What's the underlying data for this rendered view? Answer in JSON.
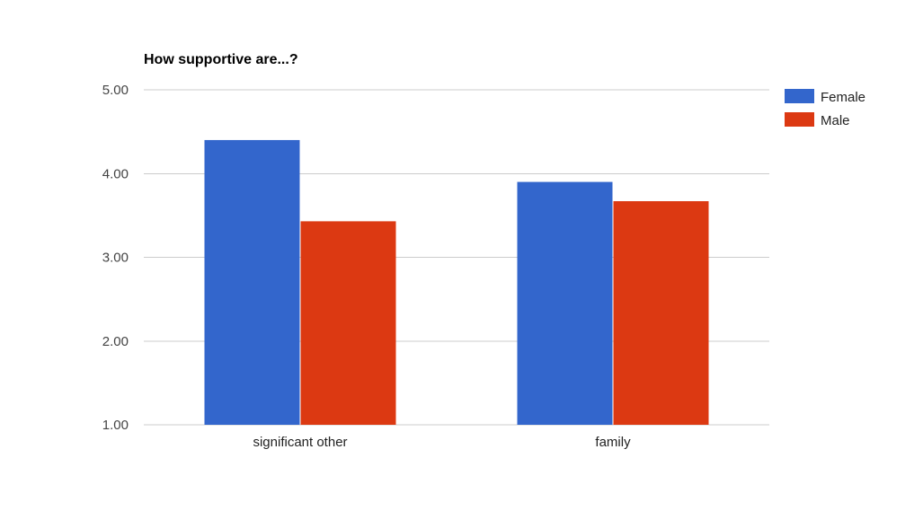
{
  "chart_data": {
    "type": "bar",
    "title": "How supportive are...?",
    "xlabel": "",
    "ylabel": "",
    "categories": [
      "significant other",
      "family"
    ],
    "series": [
      {
        "name": "Female",
        "color": "#3366cc",
        "values": [
          4.4,
          3.9
        ]
      },
      {
        "name": "Male",
        "color": "#dc3912",
        "values": [
          3.43,
          3.67
        ]
      }
    ],
    "ylim": [
      1,
      5
    ],
    "yticks": [
      "1.00",
      "2.00",
      "3.00",
      "4.00",
      "5.00"
    ],
    "grid": true,
    "legend_position": "right"
  },
  "colors": {
    "gridline": "#cccccc",
    "baseline": "#cccccc"
  }
}
